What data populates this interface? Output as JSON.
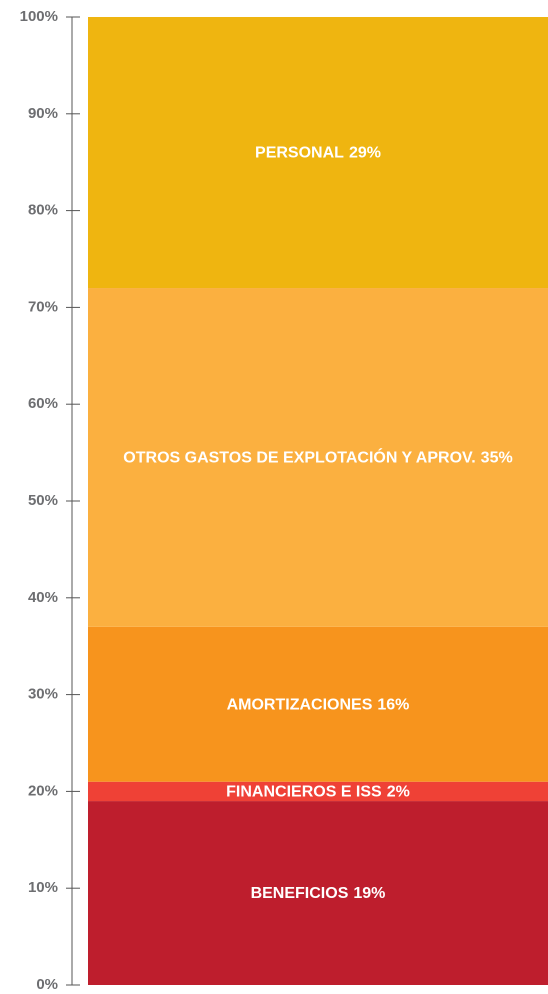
{
  "chart_data": {
    "type": "stacked_bar",
    "series": [
      {
        "name": "BENEFICIOS",
        "color": "#be1e2d",
        "values": [
          19
        ],
        "value_labels": [
          "19%"
        ]
      },
      {
        "name": "FINANCIEROS E ISS",
        "color": "#ef4136",
        "values": [
          2
        ],
        "value_labels": [
          "2%"
        ]
      },
      {
        "name": "AMORTIZACIONES",
        "color": "#f7941d",
        "values": [
          16
        ],
        "value_labels": [
          "16%"
        ]
      },
      {
        "name": "OTROS GASTOS DE EXPLOTACIÓN Y APROV.",
        "color": "#fbb040",
        "values": [
          35
        ],
        "value_labels": [
          "35%"
        ]
      },
      {
        "name": "PERSONAL",
        "color": "#efb510",
        "values": [
          29
        ],
        "value_labels": [
          "29%"
        ]
      }
    ],
    "ylim": [
      0,
      100
    ],
    "yticks": [
      {
        "value": 0,
        "label": "0%"
      },
      {
        "value": 10,
        "label": "10%"
      },
      {
        "value": 20,
        "label": "20%"
      },
      {
        "value": 30,
        "label": "30%"
      },
      {
        "value": 40,
        "label": "40%"
      },
      {
        "value": 50,
        "label": "50%"
      },
      {
        "value": 60,
        "label": "60%"
      },
      {
        "value": 70,
        "label": "70%"
      },
      {
        "value": 80,
        "label": "80%"
      },
      {
        "value": 90,
        "label": "90%"
      },
      {
        "value": 100,
        "label": "100%"
      }
    ]
  }
}
